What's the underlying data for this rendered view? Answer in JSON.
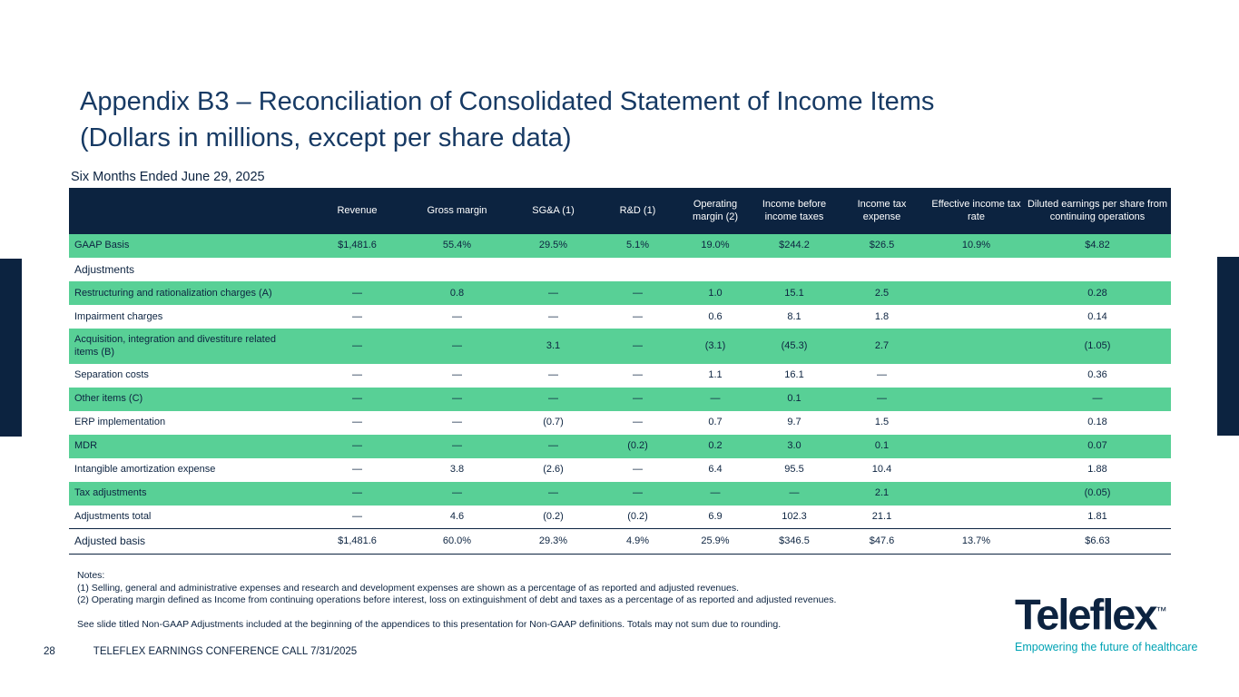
{
  "colors": {
    "navy": "#0c2340",
    "green": "#58d096",
    "teal": "#00a3b4"
  },
  "slide": {
    "title_line1": "Appendix B3 – Reconciliation of Consolidated Statement of Income Items",
    "title_line2": "(Dollars in millions, except per share data)",
    "subtitle": "Six Months Ended June 29, 2025"
  },
  "table": {
    "columns": [
      "",
      "Revenue",
      "Gross margin",
      "SG&A (1)",
      "R&D (1)",
      "Operating margin (2)",
      "Income before income taxes",
      "Income tax expense",
      "Effective income tax rate",
      "Diluted earnings per share from continuing operations"
    ],
    "rows": [
      {
        "label": "GAAP Basis",
        "style": "green",
        "values": [
          "$1,481.6",
          "55.4%",
          "29.5%",
          "5.1%",
          "19.0%",
          "$244.2",
          "$26.5",
          "10.9%",
          "$4.82"
        ]
      },
      {
        "label": "Adjustments",
        "style": "section",
        "values": [
          "",
          "",
          "",
          "",
          "",
          "",
          "",
          "",
          ""
        ]
      },
      {
        "label": "Restructuring and rationalization charges (A)",
        "style": "green",
        "values": [
          "—",
          "0.8",
          "—",
          "—",
          "1.0",
          "15.1",
          "2.5",
          "",
          "0.28"
        ]
      },
      {
        "label": "Impairment charges",
        "style": "white",
        "values": [
          "—",
          "—",
          "—",
          "—",
          "0.6",
          "8.1",
          "1.8",
          "",
          "0.14"
        ]
      },
      {
        "label": "Acquisition, integration and divestiture related items (B)",
        "style": "green",
        "values": [
          "—",
          "—",
          "3.1",
          "—",
          "(3.1)",
          "(45.3)",
          "2.7",
          "",
          "(1.05)"
        ]
      },
      {
        "label": "Separation costs",
        "style": "white",
        "values": [
          "—",
          "—",
          "—",
          "—",
          "1.1",
          "16.1",
          "—",
          "",
          "0.36"
        ]
      },
      {
        "label": "Other items (C)",
        "style": "green",
        "values": [
          "—",
          "—",
          "—",
          "—",
          "—",
          "0.1",
          "—",
          "",
          "—"
        ]
      },
      {
        "label": "ERP implementation",
        "style": "white",
        "values": [
          "—",
          "—",
          "(0.7)",
          "—",
          "0.7",
          "9.7",
          "1.5",
          "",
          "0.18"
        ]
      },
      {
        "label": "MDR",
        "style": "green",
        "values": [
          "—",
          "—",
          "—",
          "(0.2)",
          "0.2",
          "3.0",
          "0.1",
          "",
          "0.07"
        ]
      },
      {
        "label": "Intangible amortization expense",
        "style": "white",
        "values": [
          "—",
          "3.8",
          "(2.6)",
          "—",
          "6.4",
          "95.5",
          "10.4",
          "",
          "1.88"
        ]
      },
      {
        "label": "Tax adjustments",
        "style": "green",
        "values": [
          "—",
          "—",
          "—",
          "—",
          "—",
          "—",
          "2.1",
          "",
          "(0.05)"
        ]
      },
      {
        "label": "Adjustments total",
        "style": "total",
        "values": [
          "—",
          "4.6",
          "(0.2)",
          "(0.2)",
          "6.9",
          "102.3",
          "21.1",
          "",
          "1.81"
        ]
      },
      {
        "label": "Adjusted basis",
        "style": "adjusted",
        "values": [
          "$1,481.6",
          "60.0%",
          "29.3%",
          "4.9%",
          "25.9%",
          "$346.5",
          "$47.6",
          "13.7%",
          "$6.63"
        ]
      }
    ]
  },
  "notes": {
    "heading": "Notes:",
    "note1": "(1) Selling, general and administrative expenses and research and development expenses are shown as a percentage of as reported and adjusted revenues.",
    "note2": "(2) Operating margin defined as Income from continuing operations before interest, loss on extinguishment of debt and taxes as a percentage of as reported and adjusted revenues.",
    "note3": "See slide titled Non-GAAP Adjustments included at the beginning of the appendices to this presentation for Non-GAAP definitions. Totals may not sum due to rounding."
  },
  "footer": {
    "page_number": "28",
    "text": "TELEFLEX EARNINGS CONFERENCE CALL 7/31/2025"
  },
  "logo": {
    "wordmark": "Teleflex",
    "tm": "™",
    "tagline": "Empowering the future of healthcare"
  }
}
